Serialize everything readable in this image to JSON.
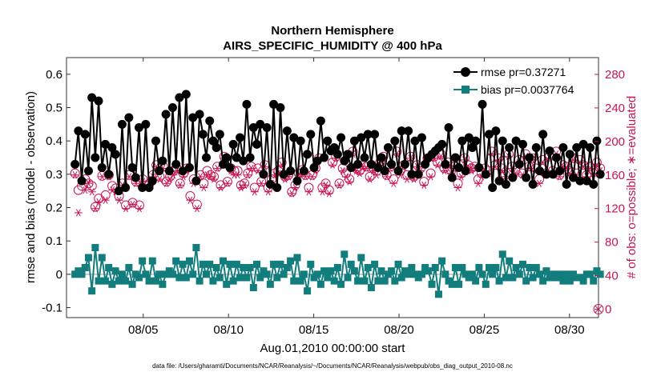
{
  "chart_data": {
    "type": "line",
    "title": "Northern Hemisphere",
    "subtitle": "AIRS_SPECIFIC_HUMIDITY @ 400 hPa",
    "xlabel": "Aug.01,2010 00:00:00 start",
    "ylabel": "rmse and bias (model - observation)",
    "ylabel_right": "# of obs: o=possible; ∗=evaluated",
    "footnote": "data file: /Users/gharamti/Documents/NCAR/Reanalysis/~/Documents/NCAR/Reanalysis/webpub/obs_diag_output_2010-08.nc",
    "xlim": [
      0.5,
      31.7
    ],
    "ylim": [
      -0.13,
      0.65
    ],
    "ylim_right": [
      -10,
      300
    ],
    "x_ticks": [
      5,
      10,
      15,
      20,
      25,
      30
    ],
    "x_tick_labels": [
      "08/05",
      "08/10",
      "08/15",
      "08/20",
      "08/25",
      "08/30"
    ],
    "y_ticks": [
      -0.1,
      0,
      0.1,
      0.2,
      0.3,
      0.4,
      0.5,
      0.6
    ],
    "y_tick_labels": [
      "-0.1",
      "0",
      "0.1",
      "0.2",
      "0.3",
      "0.4",
      "0.5",
      "0.6"
    ],
    "y_right_ticks": [
      0,
      40,
      80,
      120,
      160,
      200,
      240,
      280
    ],
    "y_right_tick_labels": [
      "0",
      "40",
      "80",
      "120",
      "160",
      "200",
      "240",
      "280"
    ],
    "grid": false,
    "legend_position": "top-right",
    "series": [
      {
        "name": "rmse pr=0.37271",
        "axis": "left",
        "color": "#000000",
        "marker": "circle",
        "values": [
          0.33,
          0.43,
          0.28,
          0.42,
          0.31,
          0.53,
          0.35,
          0.52,
          0.32,
          0.39,
          0.3,
          0.38,
          0.36,
          0.25,
          0.45,
          0.26,
          0.47,
          0.32,
          0.29,
          0.44,
          0.26,
          0.45,
          0.26,
          0.28,
          0.4,
          0.31,
          0.34,
          0.48,
          0.31,
          0.5,
          0.33,
          0.53,
          0.31,
          0.54,
          0.32,
          0.47,
          0.28,
          0.48,
          0.42,
          0.35,
          0.46,
          0.4,
          0.38,
          0.42,
          0.33,
          0.35,
          0.32,
          0.39,
          0.35,
          0.41,
          0.34,
          0.51,
          0.35,
          0.44,
          0.39,
          0.45,
          0.3,
          0.44,
          0.27,
          0.51,
          0.26,
          0.5,
          0.3,
          0.43,
          0.31,
          0.41,
          0.28,
          0.4,
          0.31,
          0.36,
          0.42,
          0.32,
          0.34,
          0.46,
          0.35,
          0.4,
          0.37,
          0.38,
          0.36,
          0.41,
          0.34,
          0.36,
          0.32,
          0.4,
          0.33,
          0.41,
          0.35,
          0.42,
          0.33,
          0.42,
          0.32,
          0.35,
          0.31,
          0.38,
          0.33,
          0.4,
          0.31,
          0.43,
          0.33,
          0.43,
          0.3,
          0.4,
          0.3,
          0.41,
          0.33,
          0.35,
          0.36,
          0.37,
          0.38,
          0.39,
          0.33,
          0.44,
          0.29,
          0.35,
          0.32,
          0.4,
          0.31,
          0.41,
          0.38,
          0.4,
          0.32,
          0.51,
          0.3,
          0.42,
          0.26,
          0.43,
          0.28,
          0.4,
          0.27,
          0.38,
          0.29,
          0.4,
          0.33,
          0.39,
          0.29,
          0.35,
          0.27,
          0.38,
          0.31,
          0.42,
          0.3,
          0.37,
          0.3,
          0.35,
          0.31,
          0.38,
          0.27,
          0.36,
          0.29,
          0.38,
          0.28,
          0.39,
          0.28,
          0.38,
          0.27,
          0.4,
          0.3
        ]
      },
      {
        "name": "bias pr=0.0037764",
        "axis": "left",
        "color": "#127d7d",
        "marker": "square",
        "values": [
          0.0,
          0.01,
          0.0,
          0.02,
          0.05,
          -0.05,
          0.08,
          -0.02,
          0.05,
          -0.02,
          0.02,
          -0.03,
          0.01,
          -0.02,
          0.0,
          -0.02,
          0.02,
          -0.03,
          0.0,
          -0.01,
          0.04,
          0.0,
          -0.02,
          0.04,
          -0.02,
          0.0,
          -0.03,
          0.0,
          0.01,
          0.0,
          0.04,
          -0.01,
          0.03,
          -0.01,
          0.04,
          0.0,
          0.08,
          -0.02,
          0.03,
          0.0,
          0.03,
          -0.02,
          0.02,
          -0.01,
          0.04,
          -0.03,
          0.03,
          -0.02,
          0.03,
          -0.01,
          0.02,
          -0.01,
          0.02,
          -0.04,
          0.03,
          -0.01,
          0.01,
          0.0,
          -0.03,
          0.03,
          -0.01,
          0.03,
          0.0,
          0.02,
          0.04,
          -0.02,
          0.05,
          -0.02,
          0.0,
          -0.05,
          0.03,
          -0.01,
          0.0,
          -0.03,
          0.01,
          -0.01,
          0.01,
          -0.02,
          0.02,
          -0.03,
          0.06,
          -0.01,
          0.03,
          0.01,
          -0.02,
          0.05,
          -0.02,
          0.02,
          -0.04,
          0.03,
          -0.02,
          0.01,
          -0.02,
          0.0,
          0.01,
          -0.02,
          0.03,
          -0.01,
          0.01,
          0.0,
          0.02,
          0.0,
          -0.01,
          0.0,
          0.02,
          0.01,
          -0.03,
          0.02,
          -0.06,
          0.04,
          0.0,
          -0.02,
          -0.03,
          0.02,
          -0.03,
          0.02,
          0.0,
          -0.01,
          0.0,
          -0.02,
          0.02,
          0.0,
          -0.03,
          0.02,
          0.0,
          0.02,
          -0.02,
          0.06,
          -0.01,
          0.04,
          -0.01,
          0.02,
          0.0,
          0.03,
          -0.02,
          0.02,
          -0.01,
          0.02,
          0.0,
          -0.02,
          0.01,
          -0.01,
          0.0,
          -0.01,
          0.0,
          -0.02,
          0.0,
          -0.02,
          0.0,
          -0.01,
          -0.01,
          -0.02,
          0.0,
          0.0,
          -0.02,
          0.01,
          0.0
        ]
      },
      {
        "name": "# possible obs",
        "axis": "right",
        "color": "#c8154f",
        "marker": "circle-open",
        "values": [
          162,
          142,
          147,
          155,
          150,
          147,
          122,
          132,
          159,
          136,
          160,
          147,
          144,
          135,
          150,
          124,
          160,
          127,
          152,
          124,
          155,
          148,
          150,
          160,
          172,
          158,
          170,
          152,
          158,
          165,
          168,
          150,
          162,
          168,
          135,
          155,
          125,
          160,
          150,
          165,
          160,
          158,
          170,
          148,
          182,
          152,
          168,
          165,
          165,
          148,
          150,
          162,
          170,
          145,
          168,
          152,
          172,
          145,
          155,
          162,
          165,
          175,
          158,
          160,
          140,
          148,
          162,
          166,
          160,
          145,
          160,
          168,
          180,
          145,
          150,
          142,
          175,
          182,
          150,
          168,
          162,
          155,
          188,
          168,
          165,
          172,
          170,
          158,
          168,
          165,
          175,
          182,
          160,
          170,
          155,
          188,
          165,
          172,
          160,
          182,
          158,
          172,
          168,
          152,
          180,
          162,
          182,
          175,
          185,
          168,
          175,
          165,
          170,
          150,
          162,
          180,
          172,
          168,
          170,
          155,
          162,
          168,
          165,
          188,
          172,
          180,
          168,
          160,
          185,
          170,
          165,
          178,
          162,
          185,
          170,
          180,
          168,
          155,
          178,
          162,
          182,
          165,
          188,
          160,
          172,
          170,
          165,
          180,
          162,
          178,
          172,
          160,
          170,
          165,
          175,
          168
        ]
      },
      {
        "name": "# evaluated obs",
        "axis": "right",
        "color": "#c8154f",
        "marker": "asterisk",
        "values": [
          160,
          115,
          155,
          142,
          150,
          140,
          120,
          128,
          158,
          130,
          158,
          142,
          140,
          130,
          148,
          120,
          158,
          125,
          150,
          120,
          152,
          145,
          148,
          158,
          170,
          155,
          168,
          150,
          155,
          160,
          165,
          148,
          158,
          165,
          130,
          150,
          120,
          158,
          145,
          160,
          158,
          155,
          168,
          145,
          180,
          150,
          165,
          160,
          160,
          145,
          148,
          160,
          168,
          140,
          165,
          150,
          170,
          140,
          150,
          160,
          162,
          172,
          155,
          158,
          138,
          145,
          160,
          162,
          158,
          140,
          158,
          165,
          178,
          140,
          148,
          138,
          172,
          180,
          148,
          165,
          158,
          152,
          185,
          165,
          162,
          170,
          168,
          155,
          165,
          160,
          172,
          180,
          158,
          168,
          150,
          185,
          160,
          170,
          155,
          180,
          155,
          170,
          165,
          148,
          178,
          158,
          180,
          172,
          182,
          165,
          172,
          162,
          168,
          145,
          158,
          178,
          170,
          165,
          168,
          150,
          158,
          165,
          162,
          185,
          170,
          178,
          165,
          158,
          182,
          168,
          162,
          175,
          160,
          182,
          168,
          178,
          165,
          150,
          175,
          160,
          180,
          162,
          185,
          158,
          170,
          168,
          162,
          178,
          160,
          175,
          170,
          158,
          168,
          162,
          172,
          165
        ]
      }
    ]
  }
}
